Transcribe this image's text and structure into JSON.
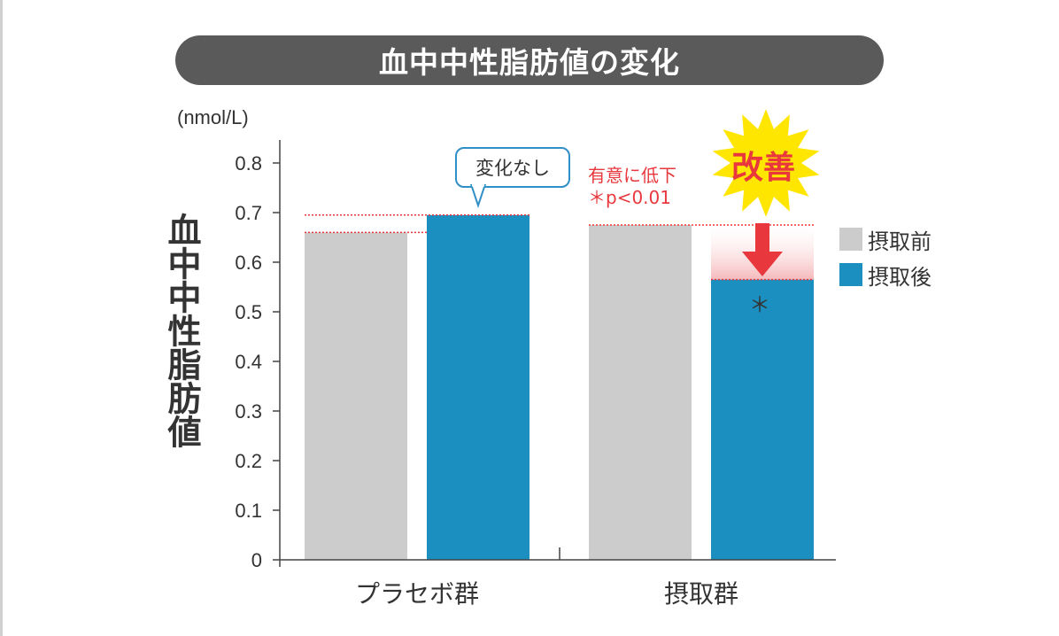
{
  "title": "血中中性脂肪値の変化",
  "colors": {
    "before": "#cccccc",
    "after": "#1a8fc0",
    "accent": "#e8383d",
    "title_bg": "#5a5a5a",
    "callout_border": "#2f8fc6"
  },
  "chart_data": {
    "type": "bar",
    "title": "血中中性脂肪値の変化",
    "unit": "(nmol/L)",
    "ylabel": "血中中性脂肪値",
    "xlabel": "",
    "categories": [
      "プラセボ群",
      "摂取群"
    ],
    "series": [
      {
        "name": "摂取前",
        "values": [
          0.66,
          0.675
        ]
      },
      {
        "name": "摂取後",
        "values": [
          0.695,
          0.565
        ]
      }
    ],
    "ylim": [
      0,
      0.8
    ],
    "yticks": [
      "0",
      "0.1",
      "0.2",
      "0.3",
      "0.4",
      "0.5",
      "0.6",
      "0.7",
      "0.8"
    ],
    "legend_position": "right",
    "grid": false
  },
  "annotations": {
    "no_change": "変化なし",
    "significant": "有意に低下",
    "pvalue": "＊p<0.01",
    "improved": "改善",
    "asterisk": "＊"
  }
}
